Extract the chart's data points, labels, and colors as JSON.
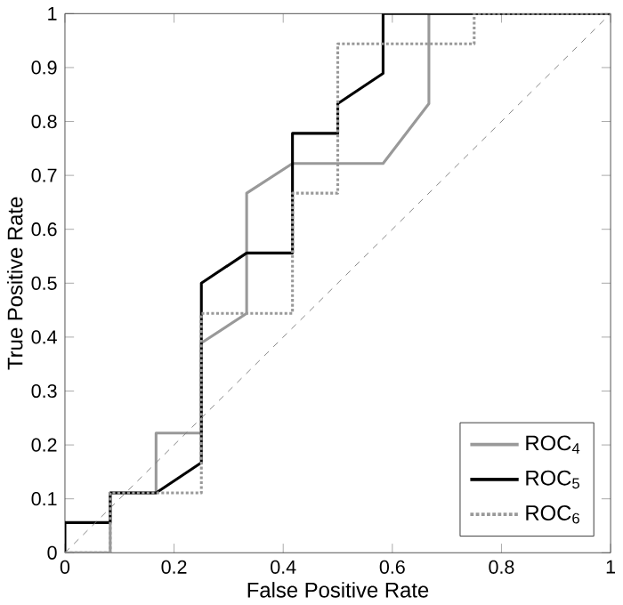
{
  "chart_data": {
    "type": "line",
    "xlabel": "False Positive Rate",
    "ylabel": "True Positive Rate",
    "xlim": [
      0,
      1
    ],
    "ylim": [
      0,
      1
    ],
    "xticks": [
      0,
      0.2,
      0.4,
      0.6,
      0.8,
      1
    ],
    "yticks": [
      0,
      0.1,
      0.2,
      0.3,
      0.4,
      0.5,
      0.6,
      0.7,
      0.8,
      0.9,
      1
    ],
    "grid": false,
    "legend": "bottom right",
    "marker": "none",
    "series": [
      {
        "name": "ROC$_{4}$",
        "color": "#999999",
        "line_style": "solid",
        "x": [
          0,
          0.083,
          0.083,
          0.167,
          0.167,
          0.25,
          0.25,
          0.333,
          0.333,
          0.417,
          0.583,
          0.667,
          0.667,
          1
        ],
        "values": [
          0,
          0,
          0.111,
          0.111,
          0.222,
          0.222,
          0.389,
          0.444,
          0.667,
          0.722,
          0.722,
          0.833,
          1,
          1
        ]
      },
      {
        "name": "ROC$_{5}$",
        "color": "#000000",
        "line_style": "solid",
        "x": [
          0,
          0,
          0.083,
          0.083,
          0.167,
          0.25,
          0.25,
          0.333,
          0.417,
          0.417,
          0.5,
          0.5,
          0.583,
          0.583,
          1
        ],
        "values": [
          0,
          0.056,
          0.056,
          0.111,
          0.111,
          0.167,
          0.5,
          0.556,
          0.556,
          0.778,
          0.778,
          0.833,
          0.889,
          1,
          1
        ]
      },
      {
        "name": "ROC$_{6}$",
        "color": "#999999",
        "line_style": "dotted",
        "x": [
          0,
          0.083,
          0.083,
          0.25,
          0.25,
          0.417,
          0.417,
          0.5,
          0.5,
          0.75,
          0.75,
          1
        ],
        "values": [
          0,
          0,
          0.111,
          0.111,
          0.444,
          0.444,
          0.667,
          0.667,
          0.944,
          0.944,
          1,
          1
        ]
      },
      {
        "color": "#808080",
        "line_style": "dashed",
        "x": [
          0,
          1
        ],
        "values": [
          0,
          1
        ]
      }
    ]
  }
}
